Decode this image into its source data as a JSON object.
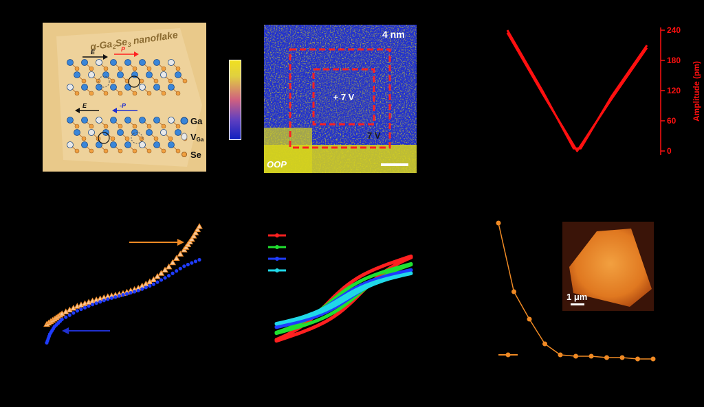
{
  "figure": {
    "colors": {
      "background": "#000000",
      "schematic_bg": "#e9c98a",
      "pfm_blue": "#1f2fd0",
      "pfm_yellow": "#d9d51a",
      "box_red": "#ff2020",
      "amp_red": "#ff1010",
      "orange": "#f08a24",
      "blue_curve": "#1f3cff",
      "green": "#20e030",
      "cyan": "#20d8e8"
    },
    "panel_a": {
      "title_prefix": "α-Ga",
      "title_sub1": "2",
      "title_mid": "Se",
      "title_sub2": "3",
      "title_suffix": " nanoflake",
      "field_label": "E",
      "pol_label": "P",
      "pol_label_neg": "-P",
      "legend": [
        {
          "symbol": "ga-atom-icon",
          "text": "Ga"
        },
        {
          "symbol": "vacancy-icon",
          "text": "V",
          "sub": "Ga"
        },
        {
          "symbol": "se-atom-icon",
          "text": "Se"
        }
      ]
    },
    "panel_b": {
      "scale_text": "4 nm",
      "inner_voltage": "+ 7 V",
      "outer_voltage": "7 V",
      "mode_label": "OOP"
    },
    "panel_c": {
      "axis_label": "Amplitude (pm)",
      "ticks": [
        "240",
        "180",
        "120",
        "60",
        "0"
      ]
    },
    "panel_f": {
      "scale_label": "1 μm"
    }
  },
  "chart_data": [
    {
      "type": "line",
      "id": "amplitude-butterfly",
      "ylabel": "Amplitude (pm)",
      "ylim": [
        0,
        240
      ],
      "yticks": [
        0,
        60,
        120,
        180,
        240
      ],
      "series": [
        {
          "values": [
            [
              -1.0,
              240
            ],
            [
              -0.5,
              120
            ],
            [
              -0.05,
              5
            ],
            [
              0.05,
              5
            ],
            [
              0.5,
              110
            ],
            [
              1.0,
              210
            ]
          ]
        },
        {
          "values": [
            [
              -1.0,
              235
            ],
            [
              -0.5,
              115
            ],
            [
              0.0,
              0
            ],
            [
              0.5,
              105
            ],
            [
              1.0,
              205
            ]
          ]
        }
      ]
    },
    {
      "type": "scatter",
      "id": "panel-d-curves",
      "series": [
        {
          "marker": "triangle",
          "color": "#f08a24",
          "values": [
            [
              0,
              0.08
            ],
            [
              0.05,
              0.13
            ],
            [
              0.1,
              0.18
            ],
            [
              0.2,
              0.25
            ],
            [
              0.3,
              0.3
            ],
            [
              0.4,
              0.34
            ],
            [
              0.5,
              0.37
            ],
            [
              0.6,
              0.42
            ],
            [
              0.7,
              0.5
            ],
            [
              0.8,
              0.62
            ],
            [
              0.9,
              0.78
            ],
            [
              0.95,
              0.88
            ],
            [
              1.0,
              1.0
            ]
          ]
        },
        {
          "marker": "circle",
          "color": "#1f3cff",
          "values": [
            [
              0,
              -0.08
            ],
            [
              0.02,
              0.0
            ],
            [
              0.05,
              0.07
            ],
            [
              0.1,
              0.14
            ],
            [
              0.2,
              0.22
            ],
            [
              0.3,
              0.28
            ],
            [
              0.4,
              0.33
            ],
            [
              0.5,
              0.37
            ],
            [
              0.6,
              0.41
            ],
            [
              0.7,
              0.47
            ],
            [
              0.8,
              0.55
            ],
            [
              0.9,
              0.64
            ],
            [
              1.0,
              0.7
            ]
          ]
        }
      ]
    },
    {
      "type": "line",
      "id": "panel-e-loops",
      "series": [
        {
          "color": "#ff2020"
        },
        {
          "color": "#20e030"
        },
        {
          "color": "#1f3cff"
        },
        {
          "color": "#20d8e8"
        }
      ]
    },
    {
      "type": "line",
      "id": "panel-f-decay",
      "series": [
        {
          "color": "#f08a24",
          "values": [
            [
              0,
              1.0
            ],
            [
              1,
              0.5
            ],
            [
              2,
              0.3
            ],
            [
              3,
              0.12
            ],
            [
              4,
              0.04
            ],
            [
              5,
              0.03
            ],
            [
              6,
              0.03
            ],
            [
              7,
              0.02
            ],
            [
              8,
              0.02
            ],
            [
              9,
              0.01
            ],
            [
              10,
              0.01
            ]
          ]
        }
      ]
    }
  ]
}
